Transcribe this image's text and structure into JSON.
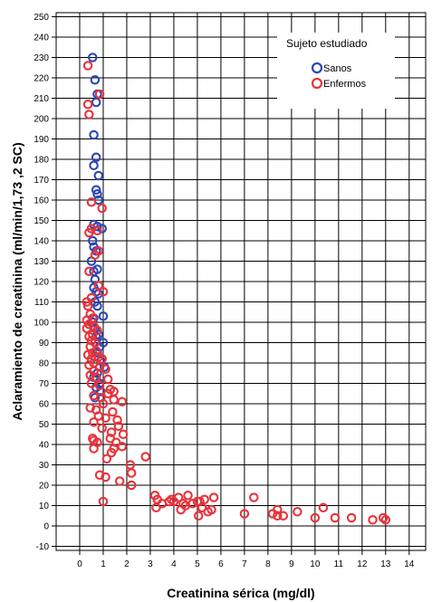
{
  "chart_data": {
    "type": "scatter",
    "title": "",
    "xlabel": "Creatinina sérica (mg/dl)",
    "ylabel": "Aclaramiento de creatinina (ml/min/1,73 ,2 SC)",
    "xlim": [
      -1,
      14.7
    ],
    "ylim": [
      -12,
      252
    ],
    "x_ticks": [
      0,
      1,
      2,
      3,
      4,
      5,
      6,
      7,
      8,
      9,
      10,
      11,
      12,
      13,
      14
    ],
    "y_ticks": [
      -10,
      0,
      10,
      20,
      30,
      40,
      50,
      60,
      70,
      80,
      90,
      100,
      110,
      120,
      130,
      140,
      150,
      160,
      170,
      180,
      190,
      200,
      210,
      220,
      230,
      240,
      250
    ],
    "grid": true,
    "legend": {
      "title": "Sujeto estudiado",
      "placement": "top-right"
    },
    "series": [
      {
        "name": "Sanos",
        "color": "#2b47b4",
        "points": [
          [
            0.55,
            230
          ],
          [
            0.65,
            219
          ],
          [
            0.75,
            212
          ],
          [
            0.7,
            208
          ],
          [
            0.6,
            192
          ],
          [
            0.7,
            181
          ],
          [
            0.6,
            177
          ],
          [
            0.8,
            172
          ],
          [
            0.7,
            165
          ],
          [
            0.75,
            163
          ],
          [
            0.8,
            160
          ],
          [
            0.6,
            148
          ],
          [
            0.75,
            147
          ],
          [
            0.95,
            146
          ],
          [
            0.55,
            140
          ],
          [
            0.6,
            137
          ],
          [
            0.7,
            135
          ],
          [
            0.5,
            130
          ],
          [
            0.75,
            126
          ],
          [
            0.6,
            125
          ],
          [
            0.65,
            121
          ],
          [
            0.6,
            117
          ],
          [
            0.7,
            115
          ],
          [
            0.8,
            114
          ],
          [
            0.65,
            110
          ],
          [
            0.75,
            108
          ],
          [
            1.0,
            103
          ],
          [
            0.6,
            102
          ],
          [
            0.55,
            100
          ],
          [
            0.65,
            97
          ],
          [
            0.8,
            94
          ],
          [
            0.7,
            93
          ],
          [
            1.0,
            90
          ],
          [
            0.85,
            88
          ],
          [
            0.75,
            85
          ],
          [
            0.65,
            83
          ],
          [
            0.9,
            81
          ],
          [
            1.05,
            78
          ],
          [
            0.75,
            75
          ],
          [
            0.6,
            73
          ],
          [
            0.85,
            70
          ],
          [
            0.7,
            68
          ],
          [
            0.9,
            66
          ],
          [
            0.65,
            63
          ]
        ]
      },
      {
        "name": "Enfermos",
        "color": "#e8333b",
        "points": [
          [
            0.35,
            226
          ],
          [
            0.85,
            212
          ],
          [
            0.35,
            207
          ],
          [
            0.4,
            202
          ],
          [
            0.5,
            159
          ],
          [
            0.95,
            156
          ],
          [
            0.5,
            146
          ],
          [
            0.75,
            145
          ],
          [
            0.4,
            144
          ],
          [
            0.8,
            135
          ],
          [
            0.65,
            133
          ],
          [
            0.4,
            125
          ],
          [
            0.8,
            118
          ],
          [
            1.0,
            115
          ],
          [
            0.5,
            112
          ],
          [
            0.3,
            110
          ],
          [
            0.35,
            108
          ],
          [
            0.45,
            104
          ],
          [
            0.55,
            102
          ],
          [
            0.3,
            101
          ],
          [
            0.4,
            99
          ],
          [
            0.6,
            98
          ],
          [
            0.3,
            97
          ],
          [
            0.75,
            96
          ],
          [
            0.55,
            94
          ],
          [
            0.4,
            93
          ],
          [
            0.5,
            91
          ],
          [
            0.65,
            90
          ],
          [
            0.45,
            88
          ],
          [
            0.7,
            86
          ],
          [
            0.55,
            85
          ],
          [
            0.35,
            84
          ],
          [
            0.8,
            83
          ],
          [
            0.5,
            82
          ],
          [
            0.95,
            82
          ],
          [
            0.6,
            80
          ],
          [
            0.4,
            79
          ],
          [
            0.85,
            78
          ],
          [
            1.1,
            77
          ],
          [
            0.6,
            76
          ],
          [
            0.45,
            74
          ],
          [
            0.7,
            73
          ],
          [
            1.2,
            72
          ],
          [
            0.5,
            70
          ],
          [
            0.85,
            69
          ],
          [
            1.3,
            67
          ],
          [
            1.45,
            66
          ],
          [
            1.2,
            65
          ],
          [
            0.6,
            64
          ],
          [
            0.9,
            63
          ],
          [
            1.45,
            62
          ],
          [
            1.8,
            61
          ],
          [
            1.0,
            60
          ],
          [
            0.45,
            58
          ],
          [
            0.7,
            57
          ],
          [
            1.4,
            56
          ],
          [
            0.8,
            54
          ],
          [
            1.1,
            53
          ],
          [
            1.6,
            52
          ],
          [
            0.6,
            51
          ],
          [
            1.65,
            49
          ],
          [
            0.95,
            48
          ],
          [
            1.35,
            46
          ],
          [
            1.85,
            45
          ],
          [
            1.3,
            43
          ],
          [
            0.55,
            43
          ],
          [
            0.6,
            42
          ],
          [
            0.75,
            41
          ],
          [
            1.55,
            41
          ],
          [
            1.8,
            39
          ],
          [
            0.6,
            38
          ],
          [
            1.45,
            38
          ],
          [
            1.35,
            36
          ],
          [
            2.8,
            34
          ],
          [
            1.15,
            33
          ],
          [
            2.15,
            30
          ],
          [
            2.2,
            26
          ],
          [
            0.85,
            25
          ],
          [
            1.1,
            24
          ],
          [
            1.7,
            22
          ],
          [
            2.2,
            20
          ],
          [
            1.0,
            12
          ],
          [
            3.2,
            15
          ],
          [
            3.3,
            13
          ],
          [
            3.8,
            12
          ],
          [
            4.2,
            14
          ],
          [
            4.6,
            15
          ],
          [
            5.0,
            12
          ],
          [
            5.3,
            13
          ],
          [
            5.7,
            14
          ],
          [
            3.5,
            11
          ],
          [
            4.0,
            12
          ],
          [
            4.5,
            10
          ],
          [
            4.8,
            11
          ],
          [
            3.25,
            9
          ],
          [
            4.3,
            8
          ],
          [
            5.2,
            9
          ],
          [
            5.6,
            8
          ],
          [
            5.45,
            7
          ],
          [
            5.05,
            5
          ],
          [
            7.4,
            14
          ],
          [
            7.0,
            6
          ],
          [
            8.2,
            6
          ],
          [
            8.4,
            5
          ],
          [
            8.65,
            5
          ],
          [
            8.4,
            8
          ],
          [
            9.25,
            7
          ],
          [
            10.35,
            9
          ],
          [
            10.0,
            4
          ],
          [
            10.85,
            4
          ],
          [
            11.55,
            4
          ],
          [
            12.45,
            3
          ],
          [
            12.9,
            4
          ],
          [
            13.0,
            3
          ],
          [
            3.9,
            13
          ],
          [
            4.4,
            11
          ],
          [
            5.1,
            12
          ]
        ]
      }
    ]
  }
}
